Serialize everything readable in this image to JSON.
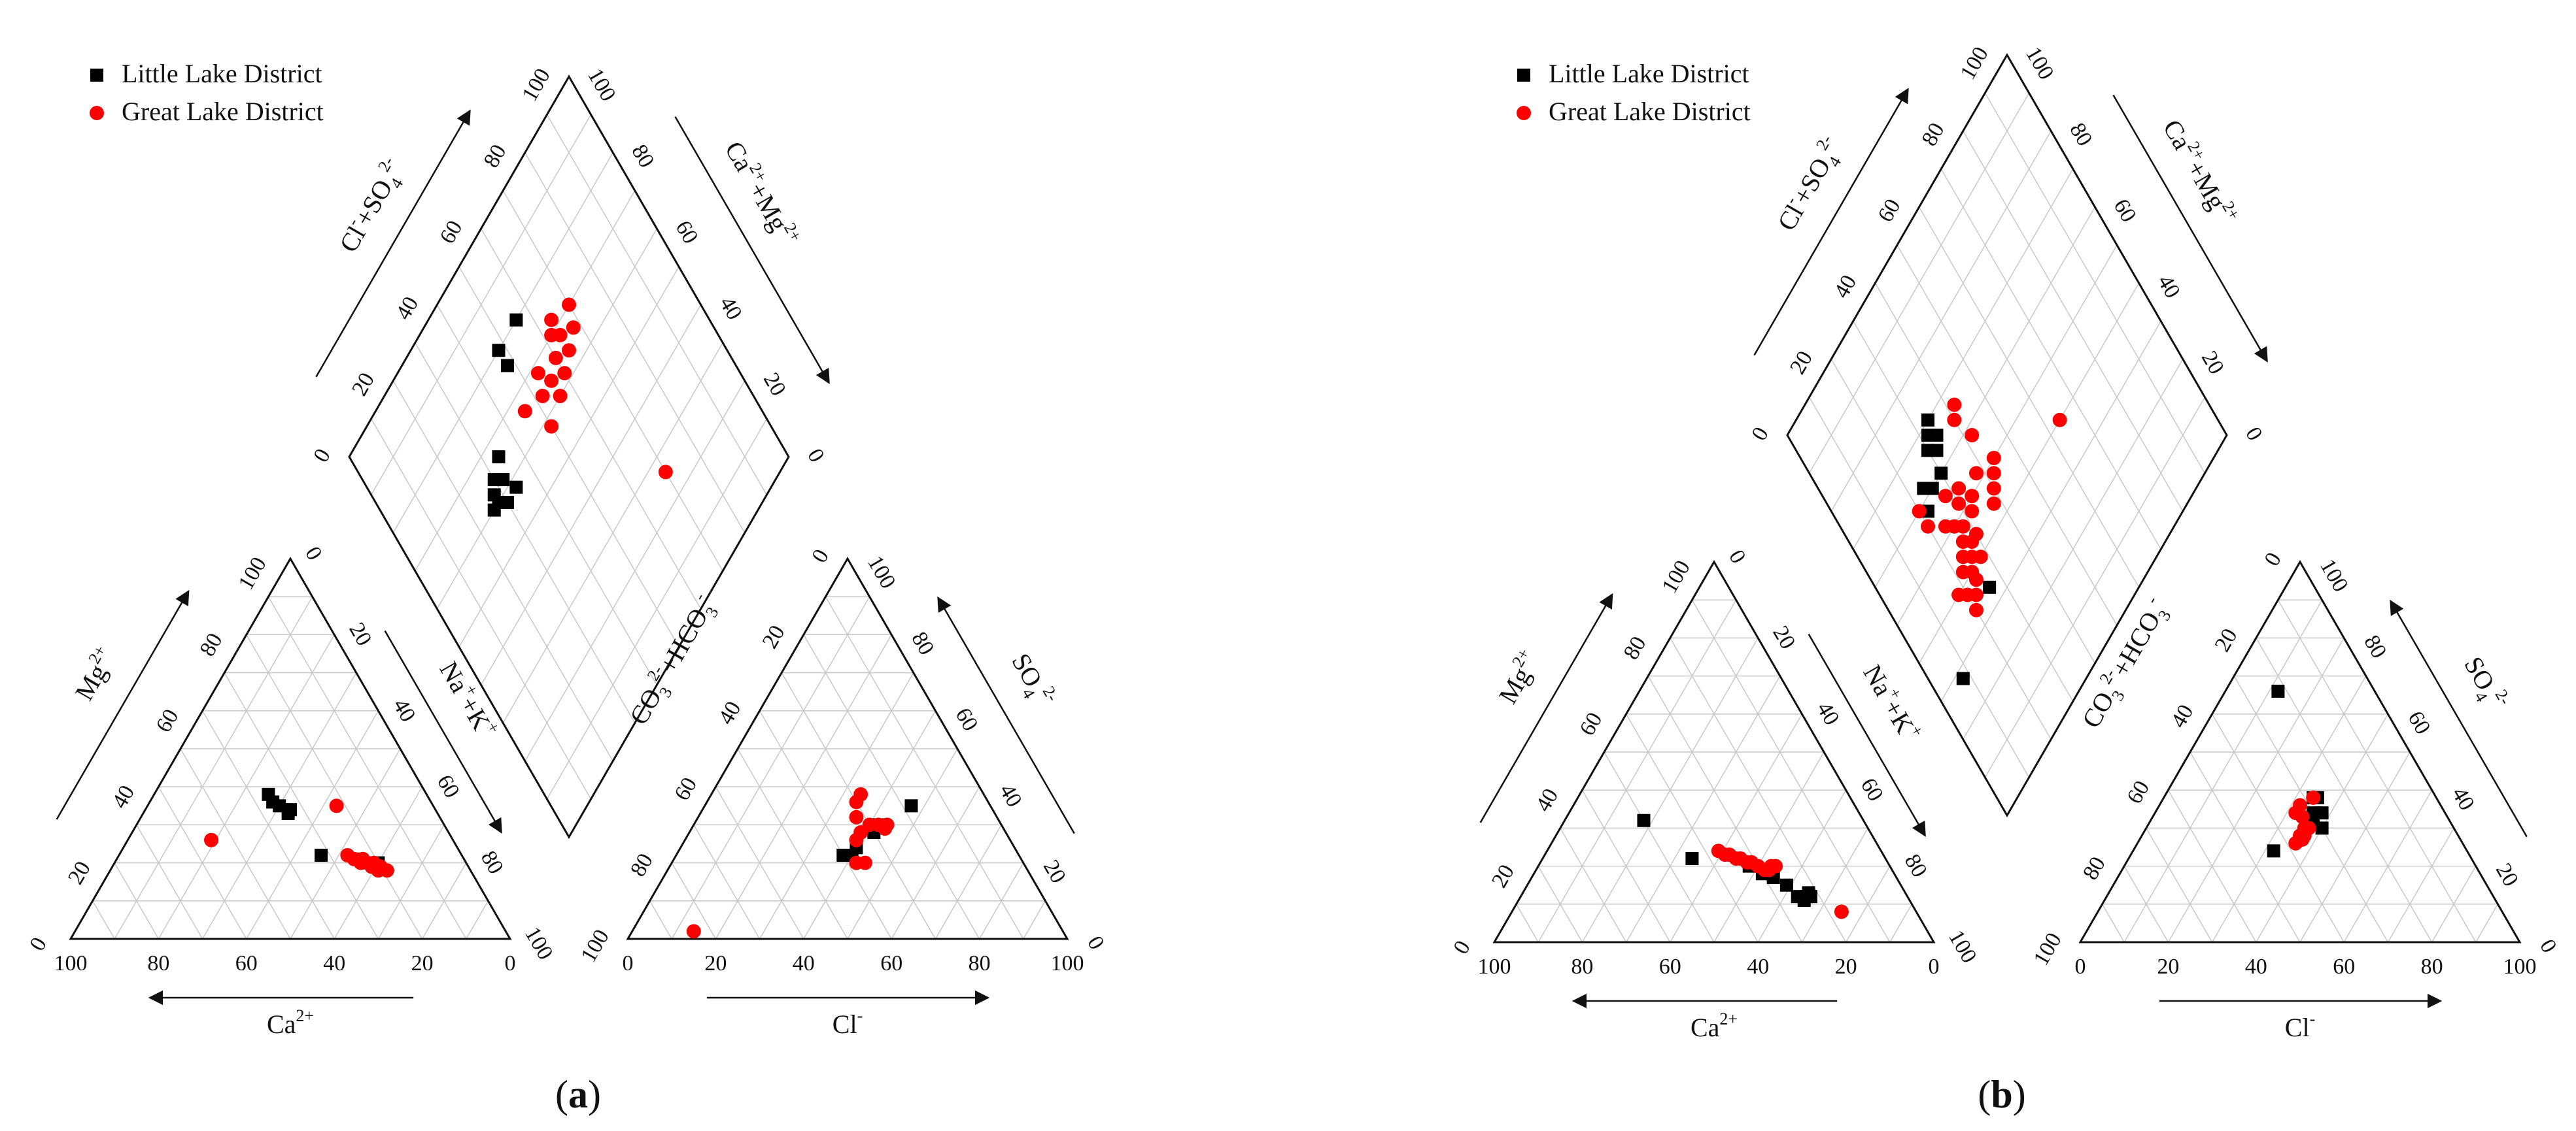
{
  "colors": {
    "little_lake": "#000000",
    "great_lake": "#ff0000",
    "frame": "#111111",
    "grid": "#c8c8c8"
  },
  "legend": {
    "little": "Little Lake District",
    "great": "Great Lake District"
  },
  "tick_labels": [
    "0",
    "20",
    "40",
    "60",
    "80",
    "100"
  ],
  "axis_labels": {
    "ca": [
      "Ca",
      "2+"
    ],
    "mg": [
      "Mg",
      "2+"
    ],
    "nak": [
      "Na",
      "+",
      "+K",
      "+"
    ],
    "cl": [
      "Cl",
      "-"
    ],
    "so4": [
      "SO",
      "4",
      "2-"
    ],
    "co3hco3": [
      "CO",
      "3",
      "2-",
      "+HCO",
      "3",
      "-"
    ],
    "clso4": [
      "Cl",
      "-",
      "+SO",
      "4",
      "2-"
    ],
    "camg": [
      "Ca",
      "2+",
      "+Mg",
      "2+"
    ]
  },
  "chart_data": [
    {
      "type": "scatter",
      "subtype": "piper",
      "panel_label": [
        "(",
        "a",
        ")"
      ],
      "grid": true,
      "legend_position": "top-left",
      "cation_triangle": {
        "axes": [
          "Ca2+ (%)",
          "Mg2+ (%)",
          "Na++K+ (%)"
        ],
        "series": [
          {
            "name": "Little Lake District",
            "marker": "square",
            "points": [
              [
                36,
                38,
                26
              ],
              [
                36,
                36,
                28
              ],
              [
                35,
                35,
                30
              ],
              [
                34,
                33,
                33
              ],
              [
                33,
                34,
                33
              ],
              [
                32,
                22,
                46
              ],
              [
                24,
                21,
                55
              ],
              [
                22,
                20,
                58
              ],
              [
                20,
                20,
                60
              ]
            ]
          },
          {
            "name": "Great Lake District",
            "marker": "circle",
            "points": [
              [
                55,
                26,
                19
              ],
              [
                22,
                35,
                43
              ],
              [
                26,
                22,
                52
              ],
              [
                25,
                21,
                54
              ],
              [
                24,
                20,
                56
              ],
              [
                23,
                21,
                56
              ],
              [
                22,
                19,
                59
              ],
              [
                21,
                20,
                59
              ],
              [
                20,
                19,
                61
              ],
              [
                21,
                18,
                61
              ],
              [
                19,
                18,
                63
              ]
            ]
          }
        ]
      },
      "anion_triangle": {
        "axes": [
          "CO32-+HCO3- (%)",
          "SO42- (%)",
          "Cl- (%)"
        ],
        "series": [
          {
            "name": "Little Lake District",
            "marker": "square",
            "points": [
              [
                40,
                22,
                38
              ],
              [
                38,
                22,
                40
              ],
              [
                36,
                24,
                40
              ],
              [
                30,
                28,
                42
              ],
              [
                28,
                30,
                42
              ],
              [
                18,
                35,
                47
              ]
            ]
          },
          {
            "name": "Great Lake District",
            "marker": "circle",
            "points": [
              [
                84,
                2,
                14
              ],
              [
                28,
                38,
                34
              ],
              [
                30,
                36,
                34
              ],
              [
                32,
                32,
                36
              ],
              [
                30,
                30,
                40
              ],
              [
                28,
                30,
                42
              ],
              [
                27,
                29,
                44
              ],
              [
                33,
                28,
                39
              ],
              [
                35,
                26,
                39
              ],
              [
                38,
                20,
                42
              ],
              [
                36,
                20,
                44
              ],
              [
                26,
                30,
                44
              ]
            ]
          }
        ]
      },
      "diamond": {
        "axes": [
          "Cl-+SO42- (%)",
          "Ca2++Mg2+ (%)"
        ],
        "series": [
          {
            "name": "Little Lake District",
            "marker": "square",
            "points": [
              [
                60,
                74
              ],
              [
                60,
                72
              ],
              [
                62,
                72
              ],
              [
                58,
                70
              ],
              [
                64,
                70
              ],
              [
                62,
                68
              ],
              [
                58,
                66
              ],
              [
                66,
                66
              ],
              [
                76,
                52
              ],
              [
                80,
                52
              ],
              [
                80,
                44
              ]
            ]
          },
          {
            "name": "Great Lake District",
            "marker": "circle",
            "points": [
              [
                26,
                30
              ],
              [
                58,
                50
              ],
              [
                66,
                54
              ],
              [
                64,
                48
              ],
              [
                68,
                46
              ],
              [
                64,
                44
              ],
              [
                60,
                44
              ],
              [
                66,
                40
              ],
              [
                62,
                40
              ],
              [
                64,
                36
              ],
              [
                68,
                36
              ],
              [
                70,
                38
              ],
              [
                72,
                36
              ],
              [
                66,
                32
              ],
              [
                70,
                30
              ]
            ]
          }
        ]
      }
    },
    {
      "type": "scatter",
      "subtype": "piper",
      "panel_label": [
        "(",
        "b",
        ")"
      ],
      "grid": true,
      "legend_position": "top-left",
      "cation_triangle": {
        "axes": [
          "Ca2+ (%)",
          "Mg2+ (%)",
          "Na++K+ (%)"
        ],
        "series": [
          {
            "name": "Little Lake District",
            "marker": "square",
            "points": [
              [
                50,
                32,
                18
              ],
              [
                44,
                22,
                34
              ],
              [
                32,
                20,
                48
              ],
              [
                30,
                18,
                52
              ],
              [
                28,
                17,
                55
              ],
              [
                26,
                15,
                59
              ],
              [
                25,
                12,
                63
              ],
              [
                24,
                11,
                65
              ],
              [
                23,
                12,
                65
              ],
              [
                22,
                13,
                65
              ],
              [
                22,
                12,
                66
              ]
            ]
          },
          {
            "name": "Great Lake District",
            "marker": "circle",
            "points": [
              [
                37,
                24,
                39
              ],
              [
                36,
                23,
                41
              ],
              [
                35,
                23,
                42
              ],
              [
                34,
                22,
                44
              ],
              [
                33,
                22,
                45
              ],
              [
                32,
                21,
                47
              ],
              [
                31,
                21,
                48
              ],
              [
                30,
                20,
                50
              ],
              [
                29,
                19,
                52
              ],
              [
                28,
                19,
                53
              ],
              [
                27,
                20,
                53
              ],
              [
                26,
                20,
                54
              ],
              [
                17,
                8,
                75
              ]
            ]
          }
        ]
      },
      "anion_triangle": {
        "axes": [
          "CO32-+HCO3- (%)",
          "SO42- (%)",
          "Cl- (%)"
        ],
        "series": [
          {
            "name": "Little Lake District",
            "marker": "square",
            "points": [
              [
                22,
                66,
                12
              ],
              [
                44,
                24,
                32
              ],
              [
                28,
                38,
                34
              ],
              [
                27,
                38,
                35
              ],
              [
                28,
                34,
                38
              ],
              [
                30,
                30,
                40
              ],
              [
                31,
                32,
                37
              ],
              [
                30,
                34,
                36
              ]
            ]
          },
          {
            "name": "Great Lake District",
            "marker": "circle",
            "points": [
              [
                34,
                34,
                32
              ],
              [
                32,
                36,
                32
              ],
              [
                33,
                33,
                34
              ],
              [
                33,
                30,
                37
              ],
              [
                34,
                30,
                36
              ],
              [
                35,
                28,
                37
              ],
              [
                36,
                28,
                36
              ],
              [
                38,
                26,
                36
              ],
              [
                28,
                38,
                34
              ],
              [
                36,
                27,
                37
              ]
            ]
          }
        ]
      },
      "diamond": {
        "axes": [
          "Cl-+SO42- (%)",
          "Ca2++Mg2+ (%)"
        ],
        "series": [
          {
            "name": "Little Lake District",
            "marker": "square",
            "points": [
              [
                28,
                92
              ],
              [
                34,
                74
              ],
              [
                58,
                78
              ],
              [
                60,
                74
              ],
              [
                62,
                76
              ],
              [
                60,
                70
              ],
              [
                64,
                68
              ],
              [
                66,
                66
              ],
              [
                68,
                68
              ],
              [
                66,
                70
              ],
              [
                70,
                66
              ]
            ]
          },
          {
            "name": "Great Lake District",
            "marker": "circle",
            "points": [
              [
                34,
                80
              ],
              [
                36,
                78
              ],
              [
                38,
                80
              ],
              [
                40,
                82
              ],
              [
                38,
                76
              ],
              [
                40,
                76
              ],
              [
                42,
                78
              ],
              [
                44,
                76
              ],
              [
                42,
                74
              ],
              [
                46,
                74
              ],
              [
                48,
                72
              ],
              [
                44,
                72
              ],
              [
                50,
                74
              ],
              [
                52,
                76
              ],
              [
                56,
                80
              ],
              [
                60,
                80
              ],
              [
                52,
                70
              ],
              [
                56,
                72
              ],
              [
                40,
                72
              ],
              [
                44,
                70
              ],
              [
                48,
                68
              ],
              [
                64,
                60
              ],
              [
                66,
                58
              ],
              [
                50,
                66
              ],
              [
                54,
                68
              ],
              [
                44,
                62
              ],
              [
                48,
                58
              ],
              [
                46,
                60
              ],
              [
                50,
                56
              ],
              [
                58,
                58
              ],
              [
                40,
                36
              ],
              [
                52,
                62
              ]
            ]
          }
        ]
      }
    }
  ]
}
